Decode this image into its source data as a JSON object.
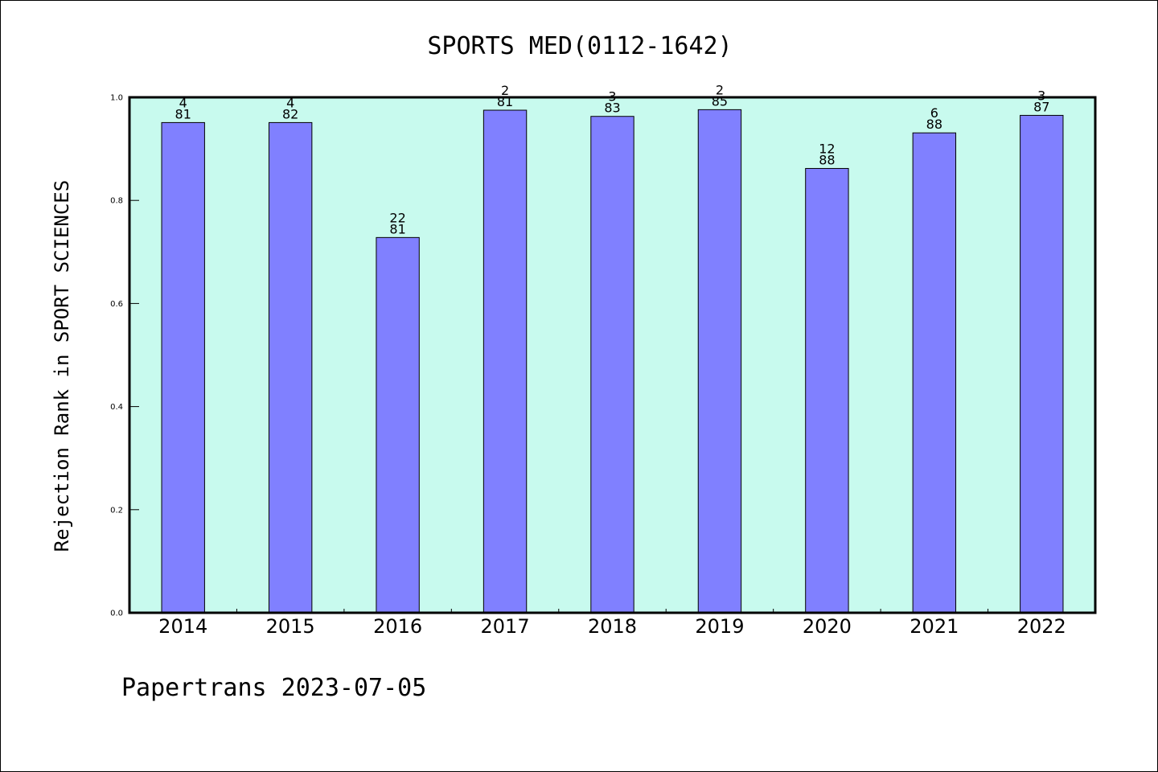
{
  "title": "SPORTS MED(0112-1642)",
  "footer": "Papertrans 2023-07-05",
  "colors": {
    "plot_background": "#c8faee",
    "bar_fill": "#8080ff",
    "bar_stroke": "#000000"
  },
  "chart_data": {
    "type": "bar",
    "title": "SPORTS MED(0112-1642)",
    "xlabel": "",
    "ylabel": "Rejection Rank in SPORT SCIENCES",
    "ylim": [
      0,
      1.0
    ],
    "yticks": [
      "0.0",
      "0.2",
      "0.4",
      "0.6",
      "0.8",
      "1.0"
    ],
    "grid": false,
    "categories": [
      "2014",
      "2015",
      "2016",
      "2017",
      "2018",
      "2019",
      "2020",
      "2021",
      "2022"
    ],
    "values": [
      0.951,
      0.951,
      0.728,
      0.975,
      0.963,
      0.976,
      0.862,
      0.931,
      0.965
    ],
    "rank": [
      "4",
      "4",
      "22",
      "2",
      "3",
      "2",
      "12",
      "6",
      "3"
    ],
    "total": [
      "81",
      "82",
      "81",
      "81",
      "83",
      "85",
      "88",
      "88",
      "87"
    ]
  }
}
